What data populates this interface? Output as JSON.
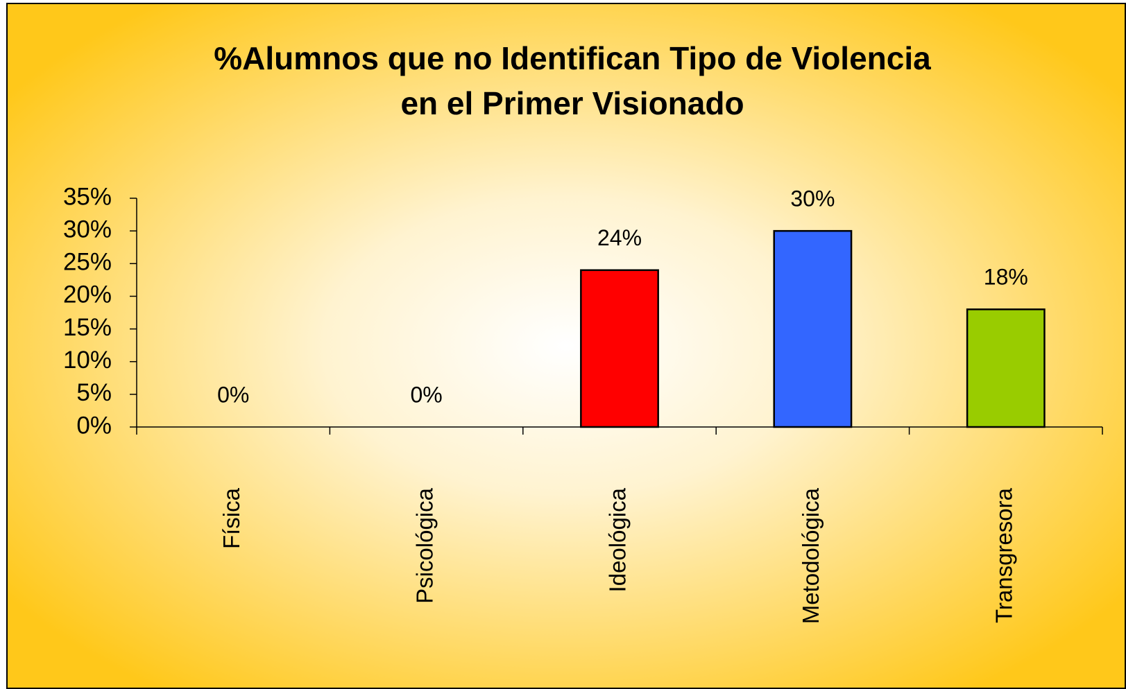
{
  "chart_data": {
    "type": "bar",
    "title": [
      "%Alumnos que no Identifican Tipo de Violencia",
      "en el Primer Visionado"
    ],
    "categories": [
      "Física",
      "Psicológica",
      "Ideológica",
      "Metodológica",
      "Transgresora"
    ],
    "values": [
      0,
      0,
      24,
      30,
      18
    ],
    "value_labels": [
      "0%",
      "0%",
      "24%",
      "30%",
      "18%"
    ],
    "colors": [
      "#ff0000",
      "#ff0000",
      "#ff0000",
      "#3366ff",
      "#99cc00"
    ],
    "ylim": [
      0,
      35
    ],
    "yticks": [
      {
        "value": 0,
        "label": "0%"
      },
      {
        "value": 5,
        "label": "5%"
      },
      {
        "value": 10,
        "label": "10%"
      },
      {
        "value": 15,
        "label": "15%"
      },
      {
        "value": 20,
        "label": "20%"
      },
      {
        "value": 25,
        "label": "25%"
      },
      {
        "value": 30,
        "label": "30%"
      },
      {
        "value": 35,
        "label": "35%"
      }
    ],
    "grid": false
  }
}
